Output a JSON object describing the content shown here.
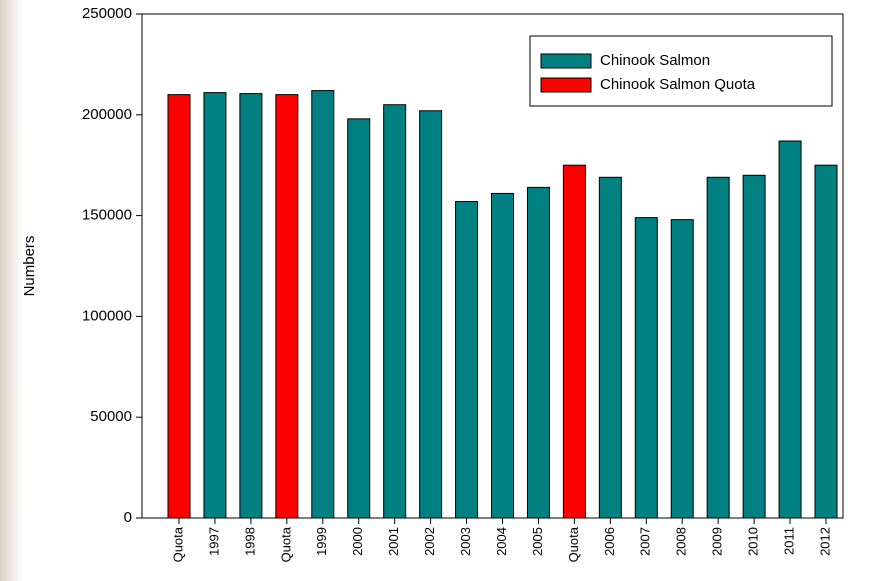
{
  "chart_data": {
    "type": "bar",
    "y_label": "Numbers",
    "categories": [
      "Quota",
      "1997",
      "1998",
      "Quota",
      "1999",
      "2000",
      "2001",
      "2002",
      "2003",
      "2004",
      "2005",
      "Quota",
      "2006",
      "2007",
      "2008",
      "2009",
      "2010",
      "2011",
      "2012"
    ],
    "series": [
      {
        "name": "Chinook Salmon",
        "color": "#008080",
        "values": [
          null,
          211000,
          210500,
          null,
          212000,
          198000,
          205000,
          202000,
          157000,
          161000,
          164000,
          null,
          169000,
          149000,
          148000,
          169000,
          170000,
          187000,
          175000
        ]
      },
      {
        "name": "Chinook Salmon Quota",
        "color": "#ff0000",
        "values": [
          210000,
          null,
          null,
          210000,
          null,
          null,
          null,
          null,
          null,
          null,
          null,
          175000,
          null,
          null,
          null,
          null,
          null,
          null,
          null
        ]
      }
    ],
    "ylim": [
      0,
      250000
    ],
    "yticks": [
      0,
      50000,
      100000,
      150000,
      200000,
      250000
    ],
    "legend": "upper right"
  }
}
